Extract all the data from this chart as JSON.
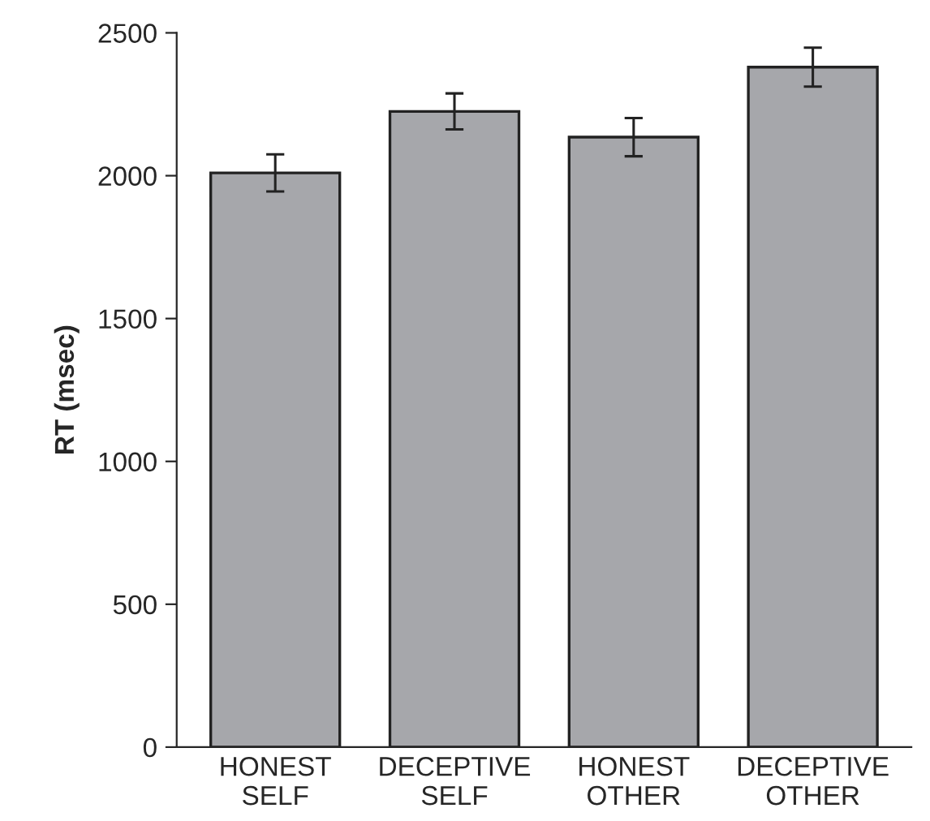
{
  "chart_data": {
    "type": "bar",
    "ylabel": "RT (msec)",
    "categories": [
      "HONEST\nSELF",
      "DECEPTIVE\nSELF",
      "HONEST\nOTHER",
      "DECEPTIVE\nOTHER"
    ],
    "values": [
      2010,
      2225,
      2135,
      2380
    ],
    "errors": [
      65,
      63,
      67,
      68
    ],
    "color": "#a6a7ab",
    "ylim": [
      0,
      2500
    ],
    "yticks": [
      0,
      500,
      1000,
      1500,
      2000,
      2500
    ],
    "grid": false
  }
}
